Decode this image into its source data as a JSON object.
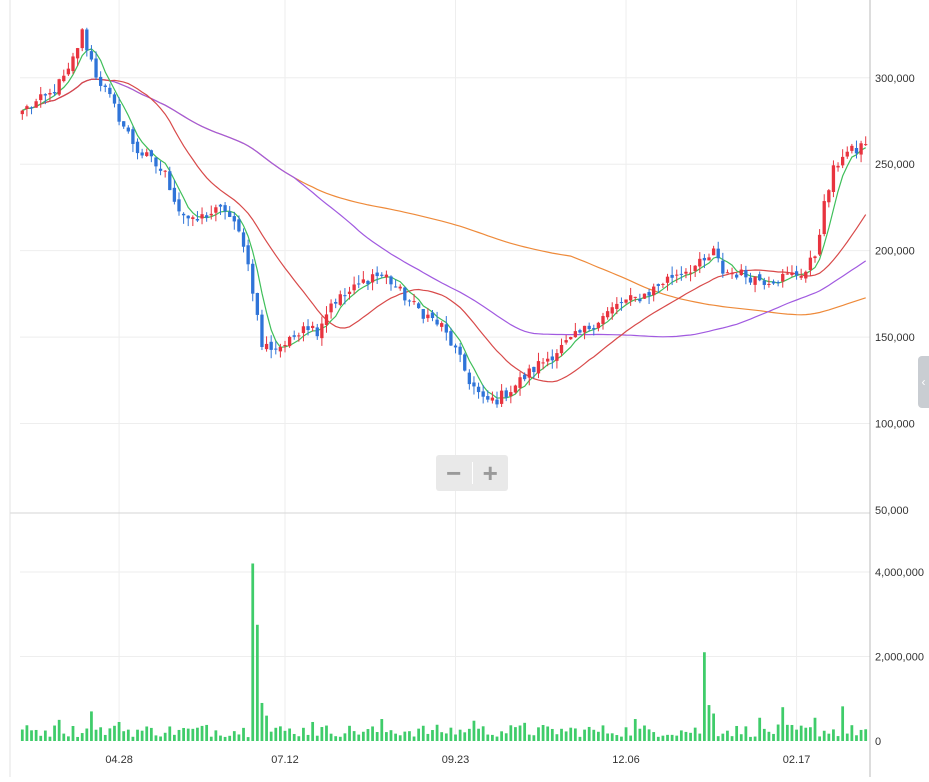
{
  "chart_data": [
    {
      "type": "candlestick",
      "panel": "price",
      "title": "",
      "x_tick_labels": [
        "04.28",
        "07.12",
        "09.23",
        "12.06",
        "02.17"
      ],
      "y_tick_labels": [
        "300,000",
        "250,000",
        "200,000",
        "150,000",
        "100,000",
        "50,000"
      ],
      "y_ticks": [
        300000,
        250000,
        200000,
        150000,
        100000,
        50000
      ],
      "ylim": [
        50000,
        345000
      ],
      "grid": true,
      "up_color": "#e8343f",
      "down_color": "#2f74d8",
      "anchor_closes": [
        [
          0,
          281000
        ],
        [
          6,
          290000
        ],
        [
          10,
          303000
        ],
        [
          13,
          326000
        ],
        [
          16,
          302000
        ],
        [
          19,
          288000
        ],
        [
          22,
          272000
        ],
        [
          25,
          258000
        ],
        [
          28,
          252000
        ],
        [
          31,
          244000
        ],
        [
          34,
          224000
        ],
        [
          37,
          216000
        ],
        [
          40,
          221000
        ],
        [
          44,
          224000
        ],
        [
          48,
          205000
        ],
        [
          50,
          178000
        ],
        [
          52,
          145000
        ],
        [
          55,
          144000
        ],
        [
          58,
          147000
        ],
        [
          61,
          158000
        ],
        [
          64,
          154000
        ],
        [
          67,
          170000
        ],
        [
          70,
          174000
        ],
        [
          73,
          180000
        ],
        [
          76,
          186000
        ],
        [
          79,
          185000
        ],
        [
          82,
          176000
        ],
        [
          85,
          168000
        ],
        [
          88,
          162000
        ],
        [
          91,
          156000
        ],
        [
          94,
          142000
        ],
        [
          97,
          125000
        ],
        [
          100,
          113000
        ],
        [
          103,
          114000
        ],
        [
          106,
          120000
        ],
        [
          109,
          127000
        ],
        [
          112,
          134000
        ],
        [
          115,
          140000
        ],
        [
          118,
          146000
        ],
        [
          121,
          152000
        ],
        [
          124,
          158000
        ],
        [
          127,
          164000
        ],
        [
          130,
          170000
        ],
        [
          133,
          172000
        ],
        [
          136,
          176000
        ],
        [
          139,
          182000
        ],
        [
          142,
          187000
        ],
        [
          145,
          190000
        ],
        [
          148,
          193000
        ],
        [
          150,
          199000
        ],
        [
          152,
          188000
        ],
        [
          155,
          187000
        ],
        [
          158,
          185000
        ],
        [
          161,
          183000
        ],
        [
          164,
          184000
        ],
        [
          167,
          186000
        ],
        [
          170,
          188000
        ],
        [
          172,
          198000
        ],
        [
          174,
          226000
        ],
        [
          176,
          246000
        ],
        [
          178,
          256000
        ],
        [
          181,
          258000
        ],
        [
          183,
          263000
        ]
      ],
      "ma_overlays": [
        {
          "period": 5,
          "color": "#3fbf5a"
        },
        {
          "period": 20,
          "color": "#d84a4a"
        },
        {
          "period": 60,
          "color": "#a15ae0"
        },
        {
          "period": 120,
          "color": "#ee8a3a"
        }
      ]
    },
    {
      "type": "bar",
      "panel": "volume",
      "title": "",
      "y_tick_labels": [
        "4,000,000",
        "2,000,000",
        "0"
      ],
      "y_ticks": [
        4000000,
        2000000,
        0
      ],
      "ylim": [
        0,
        5300000
      ],
      "bar_color": "#3fcc6a",
      "baseline_volume": 230000,
      "spikes": [
        [
          8,
          500000
        ],
        [
          15,
          700000
        ],
        [
          21,
          450000
        ],
        [
          40,
          380000
        ],
        [
          50,
          4200000
        ],
        [
          51,
          2750000
        ],
        [
          52,
          900000
        ],
        [
          53,
          600000
        ],
        [
          63,
          450000
        ],
        [
          78,
          520000
        ],
        [
          98,
          480000
        ],
        [
          109,
          430000
        ],
        [
          133,
          520000
        ],
        [
          148,
          2100000
        ],
        [
          149,
          850000
        ],
        [
          150,
          650000
        ],
        [
          160,
          550000
        ],
        [
          165,
          800000
        ],
        [
          172,
          550000
        ],
        [
          178,
          820000
        ]
      ]
    }
  ]
}
